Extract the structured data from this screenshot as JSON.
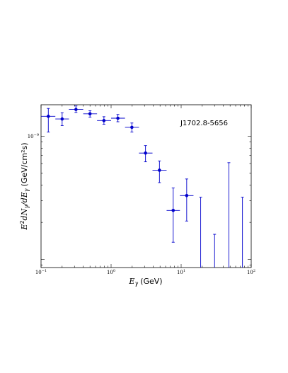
{
  "chart_data": {
    "type": "scatter",
    "title": "",
    "source_label": "J1702.8-5656",
    "xlabel": {
      "main": "E",
      "sub": "γ",
      "unit": "(GeV)"
    },
    "ylabel": {
      "pre": "E",
      "sup": "2",
      "mid": "dN",
      "sub1": "γ",
      "slash": "/dE",
      "sub2": "γ",
      "unit": "(GeV/cm²s)"
    },
    "x_scale": "log",
    "y_scale": "log",
    "xlim": [
      0.1,
      100
    ],
    "ylim": [
      8.6e-11,
      1.8e-09
    ],
    "x_ticks": [
      {
        "value": 0.1,
        "base": "10",
        "exp": "−1"
      },
      {
        "value": 1,
        "base": "10",
        "exp": "0"
      },
      {
        "value": 10,
        "base": "10",
        "exp": "1"
      },
      {
        "value": 100,
        "base": "10",
        "exp": "2"
      }
    ],
    "y_ticks": [
      {
        "value": 1e-09,
        "base": "10",
        "exp": "−9"
      }
    ],
    "color": "#0000cc",
    "points": [
      {
        "x": 0.127,
        "x_lo": 0.1,
        "x_hi": 0.16,
        "y": 1.45e-09,
        "y_lo": 1.08e-09,
        "y_hi": 1.68e-09
      },
      {
        "x": 0.2,
        "x_lo": 0.16,
        "x_hi": 0.25,
        "y": 1.38e-09,
        "y_lo": 1.22e-09,
        "y_hi": 1.55e-09
      },
      {
        "x": 0.315,
        "x_lo": 0.25,
        "x_hi": 0.4,
        "y": 1.65e-09,
        "y_lo": 1.56e-09,
        "y_hi": 1.76e-09
      },
      {
        "x": 0.5,
        "x_lo": 0.4,
        "x_hi": 0.63,
        "y": 1.52e-09,
        "y_lo": 1.43e-09,
        "y_hi": 1.61e-09
      },
      {
        "x": 0.79,
        "x_lo": 0.63,
        "x_hi": 1.0,
        "y": 1.34e-09,
        "y_lo": 1.25e-09,
        "y_hi": 1.44e-09
      },
      {
        "x": 1.25,
        "x_lo": 1.0,
        "x_hi": 1.58,
        "y": 1.4e-09,
        "y_lo": 1.31e-09,
        "y_hi": 1.5e-09
      },
      {
        "x": 1.98,
        "x_lo": 1.58,
        "x_hi": 2.5,
        "y": 1.18e-09,
        "y_lo": 1.08e-09,
        "y_hi": 1.28e-09
      },
      {
        "x": 3.1,
        "x_lo": 2.5,
        "x_hi": 3.9,
        "y": 7.3e-10,
        "y_lo": 6.2e-10,
        "y_hi": 8.4e-10
      },
      {
        "x": 4.9,
        "x_lo": 3.9,
        "x_hi": 6.2,
        "y": 5.3e-10,
        "y_lo": 4.2e-10,
        "y_hi": 6.3e-10
      },
      {
        "x": 7.7,
        "x_lo": 6.2,
        "x_hi": 9.6,
        "y": 2.5e-10,
        "y_lo": 1.38e-10,
        "y_hi": 3.8e-10
      },
      {
        "x": 12.0,
        "x_lo": 9.6,
        "x_hi": 15.0,
        "y": 3.3e-10,
        "y_lo": 2.05e-10,
        "y_hi": 4.5e-10
      }
    ],
    "upper_limits": [
      {
        "x": 19.0,
        "y": 3.2e-10
      },
      {
        "x": 30.0,
        "y": 1.6e-10
      },
      {
        "x": 48.0,
        "y": 6.1e-10
      },
      {
        "x": 75.0,
        "y": 3.2e-10
      }
    ]
  }
}
